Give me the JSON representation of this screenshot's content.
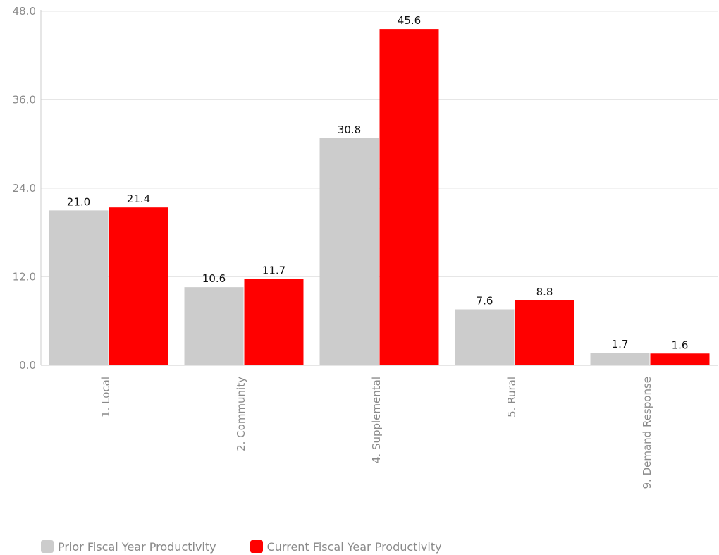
{
  "chart_data": {
    "type": "bar",
    "categories": [
      "1. Local",
      "2. Community",
      "4. Supplemental",
      "5. Rural",
      "9. Demand Response"
    ],
    "series": [
      {
        "name": "Prior Fiscal Year Productivity",
        "color": "#cccccc",
        "values": [
          21.0,
          10.6,
          30.8,
          7.6,
          1.7
        ],
        "labels": [
          "21.0",
          "10.6",
          "30.8",
          "7.6",
          "1.7"
        ]
      },
      {
        "name": "Current Fiscal Year Productivity",
        "color": "#ff0000",
        "values": [
          21.4,
          11.7,
          45.6,
          8.8,
          1.6
        ],
        "labels": [
          "21.4",
          "11.7",
          "45.6",
          "8.8",
          "1.6"
        ]
      }
    ],
    "yticks": [
      0,
      12,
      24,
      36,
      48
    ],
    "ytick_labels": [
      "0.0",
      "12.0",
      "24.0",
      "36.0",
      "48.0"
    ],
    "ylim": [
      0,
      48
    ],
    "grid": true,
    "legend_position": "bottom-left",
    "xlabel": "",
    "ylabel": "",
    "title": ""
  }
}
